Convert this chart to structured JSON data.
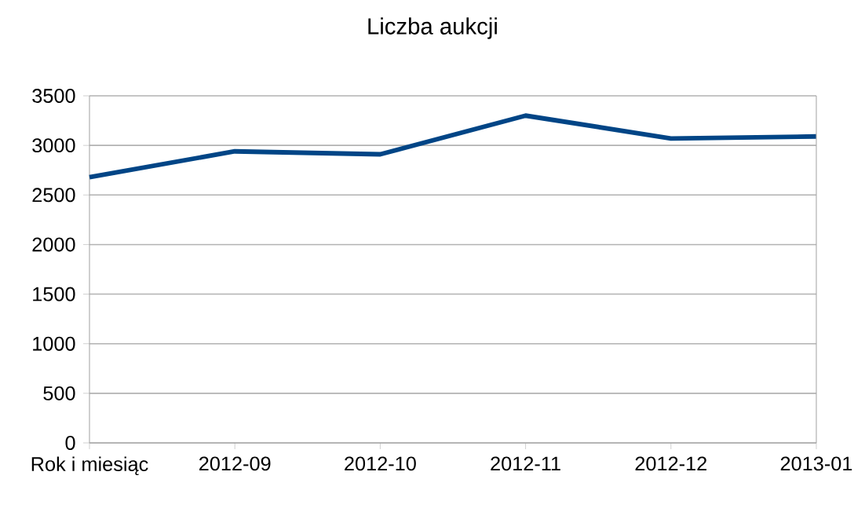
{
  "chart_data": {
    "type": "line",
    "title": "Liczba aukcji",
    "categories": [
      "Rok i miesiąc",
      "2012-09",
      "2012-10",
      "2012-11",
      "2012-12",
      "2013-01"
    ],
    "series": [
      {
        "color": "#004586",
        "values": [
          2680,
          2940,
          2910,
          3300,
          3070,
          3090
        ]
      }
    ],
    "ylim": [
      0,
      3500
    ],
    "yticks": [
      0,
      500,
      1000,
      1500,
      2000,
      2500,
      3000,
      3500
    ],
    "grid": "y",
    "marker": "none",
    "line_style": "solid"
  }
}
